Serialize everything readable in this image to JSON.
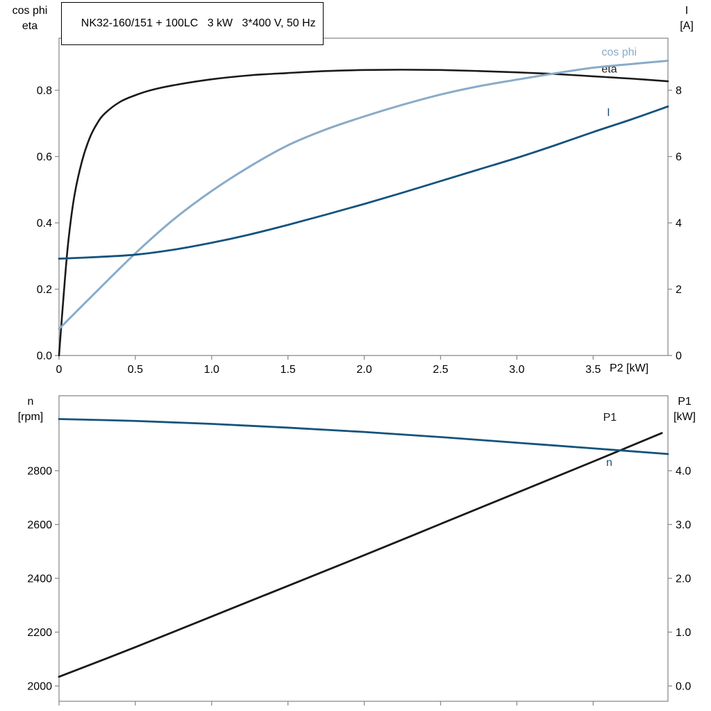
{
  "title_box": {
    "text": "NK32-160/151 + 100LC   3 kW   3*400 V, 50 Hz"
  },
  "colors": {
    "black": "#1a1a1a",
    "light_blue": "#89abc9",
    "dark_blue": "#14537d",
    "axis": "#8c8c8c",
    "text": "#000000",
    "background": "#ffffff"
  },
  "chart_data": [
    {
      "type": "line",
      "panel": "top",
      "grid": false,
      "x_axis": {
        "label": "P2 [kW]",
        "range": [
          0,
          3.99
        ],
        "show_tick_labels": true,
        "ticks": [
          {
            "v": 0,
            "t": "0"
          },
          {
            "v": 0.5,
            "t": "0.5"
          },
          {
            "v": 1.0,
            "t": "1.0"
          },
          {
            "v": 1.5,
            "t": "1.5"
          },
          {
            "v": 2.0,
            "t": "2.0"
          },
          {
            "v": 2.5,
            "t": "2.5"
          },
          {
            "v": 3.0,
            "t": "3.0"
          },
          {
            "v": 3.5,
            "t": "3.5"
          }
        ]
      },
      "left_axis": {
        "label_lines": [
          "cos phi",
          "eta"
        ],
        "range": [
          0,
          0.957
        ],
        "ticks": [
          {
            "v": 0.0,
            "t": "0.0"
          },
          {
            "v": 0.2,
            "t": "0.2"
          },
          {
            "v": 0.4,
            "t": "0.4"
          },
          {
            "v": 0.6,
            "t": "0.6"
          },
          {
            "v": 0.8,
            "t": "0.8"
          }
        ]
      },
      "right_axis": {
        "label_lines": [
          "I",
          "[A]"
        ],
        "range": [
          0,
          9.57
        ],
        "ticks": [
          {
            "v": 0,
            "t": "0"
          },
          {
            "v": 2,
            "t": "2"
          },
          {
            "v": 4,
            "t": "4"
          },
          {
            "v": 6,
            "t": "6"
          },
          {
            "v": 8,
            "t": "8"
          }
        ]
      },
      "series": [
        {
          "name": "eta",
          "label": "eta",
          "axis": "left",
          "color_key": "black",
          "width": 2.6,
          "label_at": [
            3.555,
            0.864
          ],
          "x": [
            0,
            0.03,
            0.06,
            0.1,
            0.15,
            0.2,
            0.25,
            0.3,
            0.4,
            0.5,
            0.6,
            0.75,
            1.0,
            1.25,
            1.5,
            1.75,
            2.0,
            2.25,
            2.5,
            2.75,
            3.0,
            3.25,
            3.5,
            3.75,
            3.99
          ],
          "y": [
            0,
            0.18,
            0.34,
            0.48,
            0.585,
            0.655,
            0.7,
            0.73,
            0.765,
            0.785,
            0.8,
            0.815,
            0.833,
            0.845,
            0.852,
            0.858,
            0.861,
            0.862,
            0.861,
            0.858,
            0.854,
            0.849,
            0.842,
            0.835,
            0.827
          ]
        },
        {
          "name": "cos phi",
          "label": "cos phi",
          "axis": "left",
          "color_key": "light_blue",
          "width": 3,
          "label_at": [
            3.555,
            0.9155
          ],
          "x": [
            0,
            0.25,
            0.5,
            0.75,
            1.0,
            1.25,
            1.5,
            1.75,
            2.0,
            2.25,
            2.5,
            2.75,
            3.0,
            3.25,
            3.5,
            3.75,
            3.99
          ],
          "y": [
            0.08,
            0.195,
            0.308,
            0.41,
            0.496,
            0.57,
            0.634,
            0.682,
            0.721,
            0.756,
            0.787,
            0.812,
            0.832,
            0.851,
            0.868,
            0.879,
            0.889
          ]
        },
        {
          "name": "I",
          "label": "I",
          "axis": "right",
          "color_key": "dark_blue",
          "width": 2.8,
          "label_at": [
            3.59,
            7.33
          ],
          "x": [
            0,
            0.25,
            0.5,
            0.75,
            1.0,
            1.25,
            1.5,
            1.75,
            2.0,
            2.25,
            2.5,
            2.75,
            3.0,
            3.25,
            3.5,
            3.75,
            3.99
          ],
          "y": [
            2.92,
            2.97,
            3.04,
            3.19,
            3.4,
            3.65,
            3.94,
            4.25,
            4.57,
            4.91,
            5.26,
            5.61,
            5.96,
            6.34,
            6.74,
            7.12,
            7.51
          ]
        }
      ]
    },
    {
      "type": "line",
      "panel": "bottom",
      "grid": false,
      "x_axis": {
        "label": "",
        "range": [
          0,
          3.99
        ],
        "show_tick_labels": false,
        "ticks": [
          {
            "v": 0,
            "t": ""
          },
          {
            "v": 0.5,
            "t": ""
          },
          {
            "v": 1.0,
            "t": ""
          },
          {
            "v": 1.5,
            "t": ""
          },
          {
            "v": 2.0,
            "t": ""
          },
          {
            "v": 2.5,
            "t": ""
          },
          {
            "v": 3.0,
            "t": ""
          },
          {
            "v": 3.5,
            "t": ""
          }
        ]
      },
      "left_axis": {
        "label_lines": [
          "n",
          "[rpm]"
        ],
        "range": [
          1943,
          3078.5
        ],
        "ticks": [
          {
            "v": 2000,
            "t": "2000"
          },
          {
            "v": 2200,
            "t": "2200"
          },
          {
            "v": 2400,
            "t": "2400"
          },
          {
            "v": 2600,
            "t": "2600"
          },
          {
            "v": 2800,
            "t": "2800"
          }
        ]
      },
      "right_axis": {
        "label_lines": [
          "P1",
          "[kW]"
        ],
        "range": [
          -0.285,
          5.3925
        ],
        "ticks": [
          {
            "v": 0.0,
            "t": "0.0"
          },
          {
            "v": 1.0,
            "t": "1.0"
          },
          {
            "v": 2.0,
            "t": "2.0"
          },
          {
            "v": 3.0,
            "t": "3.0"
          },
          {
            "v": 4.0,
            "t": "4.0"
          }
        ]
      },
      "series": [
        {
          "name": "P1",
          "label": "P1",
          "axis": "right",
          "color_key": "black",
          "width": 2.8,
          "label_at": [
            3.565,
            4.99
          ],
          "x": [
            0,
            0.5,
            1.0,
            1.5,
            2.0,
            2.5,
            3.0,
            3.5,
            3.95
          ],
          "y": [
            0.17,
            0.72,
            1.29,
            1.86,
            2.43,
            3.01,
            3.59,
            4.17,
            4.7
          ]
        },
        {
          "name": "n",
          "label": "n",
          "axis": "left",
          "color_key": "dark_blue",
          "width": 2.8,
          "label_at": [
            3.585,
            2831
          ],
          "x": [
            0,
            0.5,
            1.0,
            1.5,
            2.0,
            2.5,
            3.0,
            3.5,
            3.99
          ],
          "y": [
            2992,
            2985,
            2974,
            2960,
            2944,
            2925,
            2904,
            2883,
            2862
          ]
        }
      ]
    }
  ]
}
